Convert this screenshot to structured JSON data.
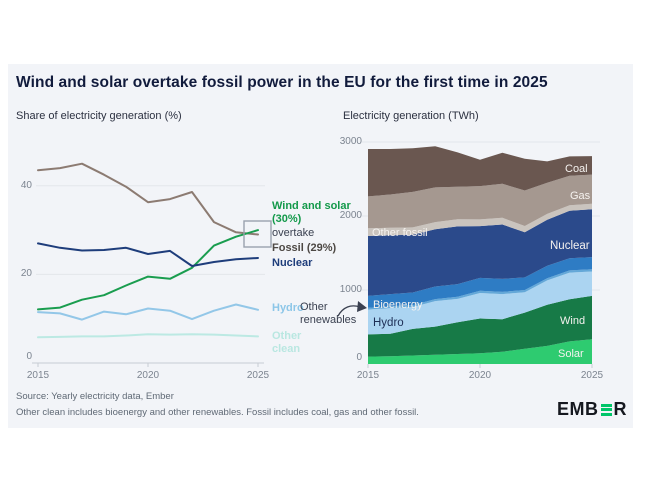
{
  "header": {
    "title": "Wind and solar overtake fossil power in the EU for the first time in 2025"
  },
  "left_chart": {
    "subtitle": "Share of electricity generation (%)",
    "labels": {
      "wind_solar": "Wind and solar (30%)",
      "overtake": "overtake",
      "fossil": "Fossil (29%)",
      "nuclear": "Nuclear",
      "hydro": "Hydro",
      "other_clean": "Other clean"
    }
  },
  "right_chart": {
    "subtitle": "Electricity generation (TWh)",
    "annotation": "Other renewables",
    "area_labels": {
      "coal": "Coal",
      "gas": "Gas",
      "other_fossil": "Other fossil",
      "nuclear": "Nuclear",
      "bioenergy": "Bioenergy",
      "hydro": "Hydro",
      "wind": "Wind",
      "solar": "Solar"
    }
  },
  "footer": {
    "source_line1": "Source: Yearly electricity data, Ember",
    "source_line2": "Other clean includes bioenergy and other renewables. Fossil includes coal, gas and other fossil.",
    "logo_part1": "EMB",
    "logo_part2": "R"
  },
  "chart_data": [
    {
      "type": "line",
      "title": "Share of electricity generation (%)",
      "x": [
        2015,
        2016,
        2017,
        2018,
        2019,
        2020,
        2021,
        2022,
        2023,
        2024,
        2025
      ],
      "series": [
        {
          "name": "Fossil",
          "color": "#8c7b72",
          "values": [
            43.5,
            44.0,
            45.0,
            42.5,
            39.8,
            36.3,
            37.0,
            38.6,
            31.8,
            29.5,
            29.0
          ]
        },
        {
          "name": "Wind and solar",
          "color": "#1a9d4f",
          "values": [
            12.1,
            12.5,
            14.3,
            15.3,
            17.5,
            19.5,
            19.0,
            21.5,
            26.5,
            28.5,
            30.0
          ]
        },
        {
          "name": "Nuclear",
          "color": "#1e3d7b",
          "values": [
            27.0,
            26.0,
            25.4,
            25.5,
            26.0,
            24.6,
            25.3,
            21.9,
            22.8,
            23.4,
            23.7
          ]
        },
        {
          "name": "Hydro",
          "color": "#93c7e8",
          "values": [
            11.5,
            11.2,
            9.8,
            11.6,
            11.0,
            12.3,
            11.8,
            9.9,
            11.8,
            13.2,
            12.0
          ]
        },
        {
          "name": "Other clean",
          "color": "#bce9e3",
          "values": [
            5.8,
            5.9,
            6.0,
            6.0,
            6.2,
            6.5,
            6.4,
            6.5,
            6.4,
            6.2,
            6.0
          ]
        }
      ],
      "ylim": [
        0,
        50
      ],
      "yticks": [
        0,
        20,
        40
      ],
      "xticks": [
        2015,
        2020,
        2025
      ],
      "grid": true,
      "legend_position": "right"
    },
    {
      "type": "area",
      "title": "Electricity generation (TWh)",
      "x": [
        2015,
        2016,
        2017,
        2018,
        2019,
        2020,
        2021,
        2022,
        2023,
        2024,
        2025
      ],
      "series": [
        {
          "name": "Solar",
          "color": "#2ecb70",
          "values": [
            100,
            105,
            115,
            125,
            135,
            145,
            165,
            205,
            245,
            305,
            335
          ]
        },
        {
          "name": "Wind",
          "color": "#177a47",
          "values": [
            300,
            305,
            360,
            380,
            430,
            470,
            440,
            490,
            555,
            570,
            585
          ]
        },
        {
          "name": "Hydro",
          "color": "#abd4f1",
          "values": [
            335,
            345,
            295,
            345,
            315,
            345,
            340,
            275,
            330,
            360,
            330
          ]
        },
        {
          "name": "Other renewables",
          "color": "#64a8d8",
          "values": [
            25,
            25,
            26,
            27,
            28,
            29,
            30,
            30,
            30,
            30,
            30
          ]
        },
        {
          "name": "Bioenergy",
          "color": "#2e7cc4",
          "values": [
            160,
            165,
            170,
            170,
            172,
            175,
            175,
            170,
            168,
            165,
            165
          ]
        },
        {
          "name": "Nuclear",
          "color": "#2b4a8b",
          "values": [
            810,
            795,
            780,
            775,
            780,
            700,
            735,
            610,
            620,
            640,
            645
          ]
        },
        {
          "name": "Other fossil",
          "color": "#cac4be",
          "values": [
            105,
            100,
            100,
            95,
            95,
            90,
            90,
            85,
            80,
            75,
            75
          ]
        },
        {
          "name": "Gas",
          "color": "#a59890",
          "values": [
            430,
            450,
            480,
            470,
            440,
            450,
            460,
            480,
            420,
            400,
            395
          ]
        },
        {
          "name": "Coal",
          "color": "#6a5750",
          "values": [
            640,
            615,
            590,
            555,
            465,
            355,
            420,
            430,
            290,
            260,
            250
          ]
        }
      ],
      "ylim": [
        0,
        3000
      ],
      "yticks": [
        0,
        1000,
        2000,
        3000
      ],
      "xticks": [
        2015,
        2020,
        2025
      ],
      "grid": true,
      "legend_position": "inline"
    }
  ]
}
